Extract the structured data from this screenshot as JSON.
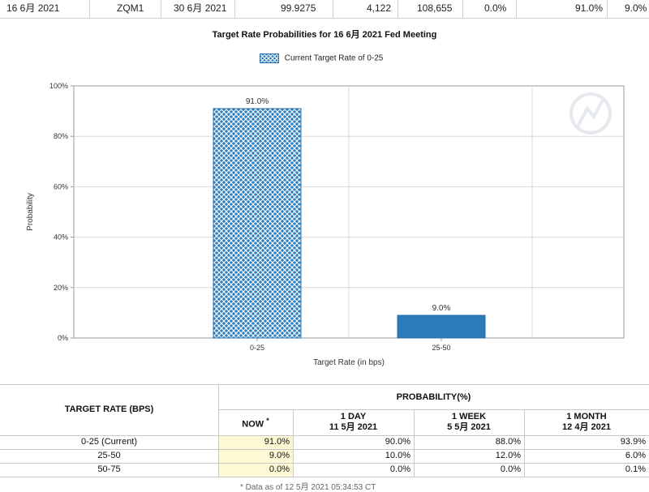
{
  "summary_row": {
    "meeting_date": "16 6月 2021",
    "contract": "ZQM1",
    "expires": "30 6月 2021",
    "mid_price": "99.9275",
    "prior_volume": "4,122",
    "prior_oi": "108,655",
    "col7": "0.0%",
    "col8": "91.0%",
    "col9": "9.0%"
  },
  "chart_data": {
    "type": "bar",
    "title": "Target Rate Probabilities for 16 6月 2021 Fed Meeting",
    "legend": [
      "Current Target Rate of 0-25"
    ],
    "categories": [
      "0-25",
      "25-50"
    ],
    "values": [
      91.0,
      9.0
    ],
    "data_labels": [
      "91.0%",
      "9.0%"
    ],
    "xlabel": "Target Rate (in bps)",
    "ylabel": "Probability",
    "yticks": [
      "0%",
      "20%",
      "40%",
      "60%",
      "80%",
      "100%"
    ],
    "ylim": [
      0,
      100
    ],
    "grid": true,
    "colors": {
      "current": "#2f80c0",
      "other": "#2b7bb9",
      "grid": "#d9d9d9"
    }
  },
  "prob_table": {
    "header_rate": "TARGET RATE (BPS)",
    "header_prob": "PROBABILITY(%)",
    "cols": [
      {
        "line1": "NOW",
        "line2": "",
        "star": "*"
      },
      {
        "line1": "1 DAY",
        "line2": "11 5月 2021",
        "star": ""
      },
      {
        "line1": "1 WEEK",
        "line2": "5 5月 2021",
        "star": ""
      },
      {
        "line1": "1 MONTH",
        "line2": "12 4月 2021",
        "star": ""
      }
    ],
    "rows": [
      {
        "rate": "0-25 (Current)",
        "now": "91.0%",
        "day": "90.0%",
        "week": "88.0%",
        "month": "93.9%"
      },
      {
        "rate": "25-50",
        "now": "9.0%",
        "day": "10.0%",
        "week": "12.0%",
        "month": "6.0%"
      },
      {
        "rate": "50-75",
        "now": "0.0%",
        "day": "0.0%",
        "week": "0.0%",
        "month": "0.1%"
      }
    ],
    "footnote": "* Data as of 12 5月 2021 05:34:53 CT",
    "highlight_color": "#fdf9d4"
  }
}
